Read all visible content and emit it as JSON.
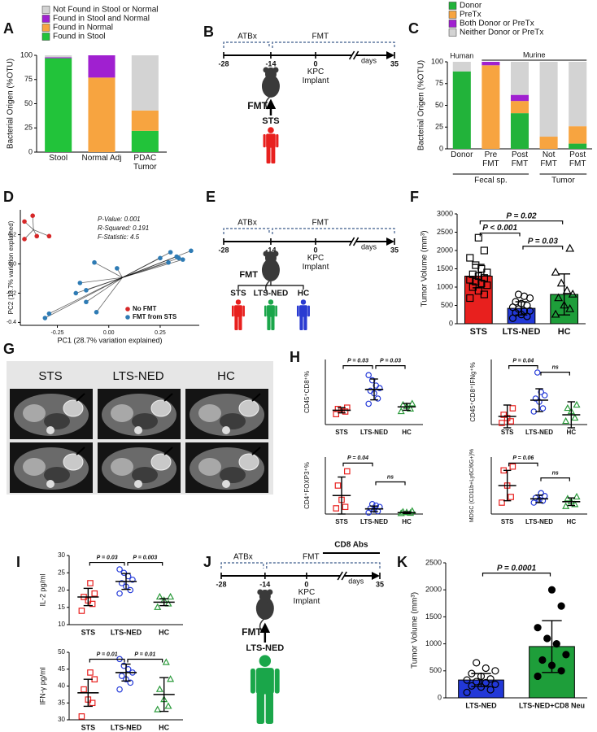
{
  "panels": [
    "A",
    "B",
    "C",
    "D",
    "E",
    "F",
    "G",
    "H",
    "I",
    "J",
    "K"
  ],
  "chart_data": [
    {
      "type": "stacked_bar",
      "ylabel": "Bacterial Origen (%OTU)",
      "categories": [
        "Stool",
        "Normal Adj",
        "PDAC Tumor"
      ],
      "ylim": [
        0,
        100
      ],
      "yticks": [
        0,
        25,
        50,
        75,
        100
      ],
      "series": [
        {
          "name": "Found in Stool",
          "color": "#22c33a",
          "values": [
            97,
            0,
            22
          ]
        },
        {
          "name": "Found in Normal",
          "color": "#f7a440",
          "values": [
            0,
            77,
            21
          ]
        },
        {
          "name": "Found in Stool and Normal",
          "color": "#a020d0",
          "values": [
            1,
            23,
            0
          ]
        },
        {
          "name": "Not Found in Stool or Normal",
          "color": "#d3d3d3",
          "values": [
            2,
            0,
            57
          ]
        }
      ]
    },
    {
      "type": "stacked_bar",
      "ylabel": "Bacterial Origen (%OTU)",
      "categories": [
        "Donor",
        "Pre FMT",
        "Post FMT",
        "Not FMT",
        "Post FMT"
      ],
      "groups": [
        "Human",
        "Murine"
      ],
      "subgroups": [
        "Fecal sp.",
        "Tumor"
      ],
      "ylim": [
        0,
        100
      ],
      "yticks": [
        0,
        25,
        50,
        75,
        100
      ],
      "series": [
        {
          "name": "Donor",
          "color": "#22b33a",
          "values": [
            89,
            0,
            41,
            0,
            6
          ]
        },
        {
          "name": "PreTx",
          "color": "#f7a440",
          "values": [
            0,
            96,
            14,
            14,
            20
          ]
        },
        {
          "name": "Both Donor or PreTx",
          "color": "#a020d0",
          "values": [
            0,
            4,
            7,
            0,
            0
          ]
        },
        {
          "name": "Neither Donor or PreTx",
          "color": "#d3d3d3",
          "values": [
            11,
            0,
            38,
            86,
            74
          ]
        }
      ]
    },
    {
      "type": "scatter",
      "xlabel": "PC1 (28.7% variation explained)",
      "ylabel": "PC2 (13.7% variation explained)",
      "annotations": [
        "P-Value: 0.001",
        "R-Squared: 0.191",
        "F-Statistic: 4.5"
      ],
      "xlim": [
        -0.43,
        0.44
      ],
      "ylim": [
        -0.42,
        0.37
      ],
      "xticks": [
        -0.25,
        {
          "value": 0,
          "label": "0.00"
        },
        0.25
      ],
      "yticks": [
        -0.4,
        -0.2,
        {
          "value": 0,
          "label": "0.0"
        },
        0.2
      ],
      "series": [
        {
          "name": "No FMT",
          "color": "#d62728",
          "x": [
            -0.41,
            -0.37,
            -0.35,
            -0.41,
            -0.29
          ],
          "values": [
            0.29,
            0.33,
            0.19,
            0.17,
            0.19
          ]
        },
        {
          "name": "FMT from STS",
          "color": "#2e7bb4",
          "x": [
            0.3,
            0.33,
            0.34,
            0.36,
            0.4,
            0.29,
            0.25,
            -0.07,
            0.04,
            -0.14,
            -0.11,
            -0.16,
            -0.11,
            -0.06,
            -0.31,
            -0.29
          ],
          "values": [
            0.08,
            0.05,
            0.04,
            0.03,
            0.09,
            0.01,
            0.04,
            0.01,
            -0.03,
            -0.13,
            -0.18,
            -0.2,
            -0.26,
            -0.33,
            -0.37,
            -0.34
          ]
        }
      ]
    },
    {
      "type": "bar",
      "ylabel": "Tumor Volume (mm³)",
      "categories": [
        "STS",
        "LTS-NED",
        "HC"
      ],
      "colors": [
        "#e8201e",
        "#2238d8",
        "#1e9e3a"
      ],
      "ylim": [
        0,
        3000
      ],
      "yticks": [
        0,
        500,
        1000,
        1500,
        2000,
        2500,
        3000
      ],
      "values": [
        1300,
        420,
        800
      ],
      "errors": [
        320,
        180,
        560
      ],
      "points": [
        [
          700,
          800,
          900,
          1000,
          1050,
          1100,
          1150,
          1200,
          1250,
          1300,
          1350,
          1400,
          1500,
          1600,
          1800,
          2000,
          2350
        ],
        [
          150,
          200,
          250,
          300,
          350,
          350,
          400,
          450,
          500,
          550,
          600,
          700,
          750,
          800
        ],
        [
          250,
          400,
          500,
          700,
          800,
          900,
          1100,
          1400,
          2050
        ]
      ],
      "annotations": [
        "P = 0.02",
        "P < 0.001",
        "P = 0.03"
      ]
    },
    {
      "type": "dot",
      "ylabel": "CD45⁺CD8⁺%",
      "categories": [
        "STS",
        "LTS-NED",
        "HC"
      ],
      "colors": [
        "#e8201e",
        "#2238d8",
        "#2a9a3a"
      ],
      "ylim": [
        0,
        25
      ],
      "values": [
        5.5,
        13.5,
        6.8
      ],
      "errors": [
        1,
        4,
        1.3
      ],
      "points": [
        [
          4,
          5,
          5.5,
          6,
          6.5
        ],
        [
          8,
          10,
          12,
          13,
          14,
          15,
          17,
          19
        ],
        [
          5,
          6,
          7,
          7.5,
          8
        ]
      ],
      "annotations": [
        "P = 0.03",
        "P = 0.03"
      ]
    },
    {
      "type": "dot",
      "ylabel": "CD45⁺CD8⁺IFNg⁺%",
      "categories": [
        "STS",
        "LTS-NED",
        "HC"
      ],
      "colors": [
        "#e8201e",
        "#2238d8",
        "#2a9a3a"
      ],
      "ylim": [
        0,
        2
      ],
      "values": [
        0.25,
        0.75,
        0.3
      ],
      "errors": [
        0.35,
        0.35,
        0.4
      ],
      "points": [
        [
          0.05,
          0.1,
          0.2,
          0.3,
          0.5
        ],
        [
          0.4,
          0.5,
          0.7,
          0.8,
          0.9,
          1.0,
          1.6
        ],
        [
          0.1,
          0.2,
          0.4,
          0.5,
          0.6
        ]
      ],
      "annotations": [
        "P = 0.04",
        "ns"
      ]
    },
    {
      "type": "dot",
      "ylabel": "CD4⁺FOXP3⁺%",
      "categories": [
        "STS",
        "LTS-NED",
        "HC"
      ],
      "colors": [
        "#e8201e",
        "#2238d8",
        "#2a9a3a"
      ],
      "ylim": [
        0,
        20
      ],
      "values": [
        6.5,
        1.8,
        0.5
      ],
      "errors": [
        6.5,
        1,
        0.3
      ],
      "points": [
        [
          2,
          2.5,
          5,
          10,
          15
        ],
        [
          0.5,
          1,
          1.5,
          2,
          2.5,
          3,
          3.5
        ],
        [
          0.2,
          0.3,
          0.5,
          0.7,
          1
        ]
      ],
      "annotations": [
        "P = 0.04",
        "ns"
      ]
    },
    {
      "type": "dot",
      "ylabel": "MDSC (CD11b+Ly6C/6G+)%",
      "categories": [
        "STS",
        "LTS-NED",
        "HC"
      ],
      "colors": [
        "#e8201e",
        "#2238d8",
        "#2a9a3a"
      ],
      "ylim": [
        0,
        60
      ],
      "values": [
        30,
        16,
        13
      ],
      "errors": [
        16,
        4,
        4
      ],
      "points": [
        [
          12,
          18,
          30,
          46,
          50
        ],
        [
          12,
          14,
          15,
          17,
          19,
          22
        ],
        [
          8,
          10,
          13,
          16,
          18
        ]
      ],
      "annotations": [
        "P = 0.06",
        "ns"
      ]
    },
    {
      "type": "dot",
      "ylabel": "IL-2 pg/ml",
      "categories": [
        "STS",
        "LTS-NED",
        "HC"
      ],
      "colors": [
        "#e8201e",
        "#2238d8",
        "#2a9a3a"
      ],
      "ylim": [
        10,
        30
      ],
      "yticks": [
        10,
        15,
        20,
        25,
        30
      ],
      "values": [
        18,
        22.5,
        16.5
      ],
      "errors": [
        2.5,
        2.3,
        1
      ],
      "points": [
        [
          14,
          16,
          17,
          18,
          19,
          22
        ],
        [
          19,
          20,
          21,
          22,
          23,
          24,
          25,
          26
        ],
        [
          15,
          16,
          17,
          18,
          18
        ]
      ],
      "annotations": [
        "P = 0.03",
        "P = 0.003"
      ]
    },
    {
      "type": "dot",
      "ylabel": "IFN-γ pg/ml",
      "categories": [
        "STS",
        "LTS-NED",
        "HC"
      ],
      "colors": [
        "#e8201e",
        "#2238d8",
        "#2a9a3a"
      ],
      "ylim": [
        30,
        50
      ],
      "yticks": [
        30,
        35,
        40,
        45,
        50
      ],
      "values": [
        38,
        44,
        37.5
      ],
      "errors": [
        4,
        2.5,
        5
      ],
      "points": [
        [
          31,
          35,
          36,
          39,
          42,
          44
        ],
        [
          39,
          41,
          42,
          43,
          44,
          45,
          46,
          48
        ],
        [
          33,
          34,
          36,
          39,
          42,
          47
        ]
      ],
      "annotations": [
        "P = 0.01",
        "P = 0.01"
      ]
    },
    {
      "type": "bar",
      "ylabel": "Tumor Volume (mm³)",
      "categories": [
        "LTS-NED",
        "LTS-NED+CD8 Neu"
      ],
      "colors": [
        "#2238d8",
        "#1e9e3a"
      ],
      "ylim": [
        0,
        2500
      ],
      "yticks": [
        0,
        500,
        1000,
        1500,
        2000,
        2500
      ],
      "values": [
        330,
        950
      ],
      "errors": [
        120,
        480
      ],
      "points": [
        [
          100,
          150,
          200,
          220,
          250,
          280,
          300,
          330,
          350,
          400,
          450,
          500,
          550,
          650
        ],
        [
          400,
          500,
          600,
          700,
          800,
          1000,
          1100,
          1300,
          1700,
          2000
        ]
      ],
      "annotations": [
        "P = 0.0001"
      ]
    }
  ],
  "timelines": [
    {
      "pretreatment": "ATBx",
      "treatment": "FMT",
      "days": [
        "-28",
        "-14",
        "0",
        "35"
      ],
      "unit": "days",
      "implant": "KPC Implant",
      "transfer": "FMT",
      "donors": [
        "STS"
      ],
      "donor_colors": [
        "#e8201e"
      ]
    },
    {
      "pretreatment": "ATBx",
      "treatment": "FMT",
      "days": [
        "-28",
        "-14",
        "0",
        "35"
      ],
      "unit": "days",
      "implant": "KPC Implant",
      "transfer": "FMT",
      "donors": [
        "STS",
        "LTS-NED",
        "HC"
      ],
      "donor_colors": [
        "#e8201e",
        "#1aa64a",
        "#2a3bd1"
      ]
    },
    {
      "pretreatment": "ATBx",
      "treatment": "FMT",
      "days": [
        "-28",
        "-14",
        "0",
        "35"
      ],
      "unit": "days",
      "implant": "KPC Implant",
      "transfer": "FMT",
      "donors": [
        "LTS-NED"
      ],
      "donor_colors": [
        "#1aa64a"
      ],
      "antibody": "CD8 Abs",
      "antibody_color": "#c0502a"
    }
  ],
  "mri": {
    "labels": [
      "STS",
      "LTS-NED",
      "HC"
    ]
  }
}
